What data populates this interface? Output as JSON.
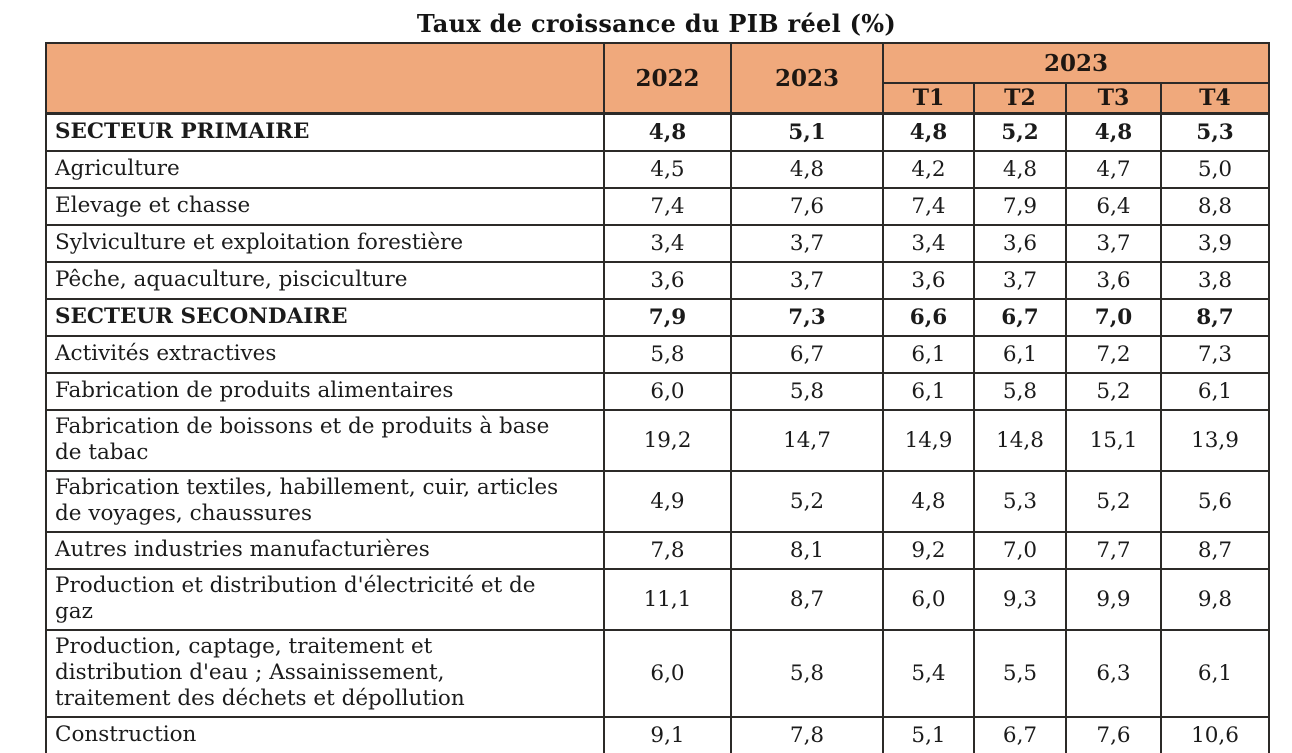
{
  "title": "Taux de croissance du PIB réel (%)",
  "colors": {
    "header_bg": "#F0A97C",
    "border": "#2C2A28",
    "text": "#1B1B1B"
  },
  "table": {
    "header": {
      "col_2022": "2022",
      "col_2023": "2023",
      "group_2023": "2023",
      "quarters": [
        "T1",
        "T2",
        "T3",
        "T4"
      ]
    },
    "columns": [
      "",
      "2022",
      "2023",
      "T1 2023",
      "T2 2023",
      "T3 2023",
      "T4 2023"
    ],
    "rows": [
      {
        "label": "SECTEUR PRIMAIRE",
        "bold": true,
        "values": [
          "4,8",
          "5,1",
          "4,8",
          "5,2",
          "4,8",
          "5,3"
        ]
      },
      {
        "label": "Agriculture",
        "bold": false,
        "values": [
          "4,5",
          "4,8",
          "4,2",
          "4,8",
          "4,7",
          "5,0"
        ]
      },
      {
        "label": "Elevage et chasse",
        "bold": false,
        "values": [
          "7,4",
          "7,6",
          "7,4",
          "7,9",
          "6,4",
          "8,8"
        ]
      },
      {
        "label": "Sylviculture et exploitation forestière",
        "bold": false,
        "values": [
          "3,4",
          "3,7",
          "3,4",
          "3,6",
          "3,7",
          "3,9"
        ]
      },
      {
        "label": "Pêche, aquaculture, pisciculture",
        "bold": false,
        "values": [
          "3,6",
          "3,7",
          "3,6",
          "3,7",
          "3,6",
          "3,8"
        ]
      },
      {
        "label": "SECTEUR SECONDAIRE",
        "bold": true,
        "values": [
          "7,9",
          "7,3",
          "6,6",
          "6,7",
          "7,0",
          "8,7"
        ]
      },
      {
        "label": "Activités extractives",
        "bold": false,
        "values": [
          "5,8",
          "6,7",
          "6,1",
          "6,1",
          "7,2",
          "7,3"
        ]
      },
      {
        "label": "Fabrication de produits alimentaires",
        "bold": false,
        "values": [
          "6,0",
          "5,8",
          "6,1",
          "5,8",
          "5,2",
          "6,1"
        ]
      },
      {
        "label": "Fabrication de boissons et de produits à base de tabac",
        "bold": false,
        "values": [
          "19,2",
          "14,7",
          "14,9",
          "14,8",
          "15,1",
          "13,9"
        ]
      },
      {
        "label": "Fabrication textiles, habillement, cuir, articles de voyages, chaussures",
        "bold": false,
        "values": [
          "4,9",
          "5,2",
          "4,8",
          "5,3",
          "5,2",
          "5,6"
        ]
      },
      {
        "label": "Autres industries manufacturières",
        "bold": false,
        "values": [
          "7,8",
          "8,1",
          "9,2",
          "7,0",
          "7,7",
          "8,7"
        ]
      },
      {
        "label": "Production et distribution d'électricité et de gaz",
        "bold": false,
        "values": [
          "11,1",
          "8,7",
          "6,0",
          "9,3",
          "9,9",
          "9,8"
        ]
      },
      {
        "label": "Production, captage, traitement et distribution d'eau ; Assainissement, traitement des déchets et dépollution",
        "bold": false,
        "values": [
          "6,0",
          "5,8",
          "5,4",
          "5,5",
          "6,3",
          "6,1"
        ]
      },
      {
        "label": "Construction",
        "bold": false,
        "values": [
          "9,1",
          "7,8",
          "5,1",
          "6,7",
          "7,6",
          "10,6"
        ]
      }
    ]
  },
  "chart_data": {
    "type": "table",
    "title": "Taux de croissance du PIB réel (%)",
    "categories": [
      "2022",
      "2023",
      "T1 2023",
      "T2 2023",
      "T3 2023",
      "T4 2023"
    ],
    "series": [
      {
        "name": "SECTEUR PRIMAIRE",
        "values": [
          4.8,
          5.1,
          4.8,
          5.2,
          4.8,
          5.3
        ]
      },
      {
        "name": "Agriculture",
        "values": [
          4.5,
          4.8,
          4.2,
          4.8,
          4.7,
          5.0
        ]
      },
      {
        "name": "Elevage et chasse",
        "values": [
          7.4,
          7.6,
          7.4,
          7.9,
          6.4,
          8.8
        ]
      },
      {
        "name": "Sylviculture et exploitation forestière",
        "values": [
          3.4,
          3.7,
          3.4,
          3.6,
          3.7,
          3.9
        ]
      },
      {
        "name": "Pêche, aquaculture, pisciculture",
        "values": [
          3.6,
          3.7,
          3.6,
          3.7,
          3.6,
          3.8
        ]
      },
      {
        "name": "SECTEUR SECONDAIRE",
        "values": [
          7.9,
          7.3,
          6.6,
          6.7,
          7.0,
          8.7
        ]
      },
      {
        "name": "Activités extractives",
        "values": [
          5.8,
          6.7,
          6.1,
          6.1,
          7.2,
          7.3
        ]
      },
      {
        "name": "Fabrication de produits alimentaires",
        "values": [
          6.0,
          5.8,
          6.1,
          5.8,
          5.2,
          6.1
        ]
      },
      {
        "name": "Fabrication de boissons et de produits à base de tabac",
        "values": [
          19.2,
          14.7,
          14.9,
          14.8,
          15.1,
          13.9
        ]
      },
      {
        "name": "Fabrication textiles, habillement, cuir, articles de voyages, chaussures",
        "values": [
          4.9,
          5.2,
          4.8,
          5.3,
          5.2,
          5.6
        ]
      },
      {
        "name": "Autres industries manufacturières",
        "values": [
          7.8,
          8.1,
          9.2,
          7.0,
          7.7,
          8.7
        ]
      },
      {
        "name": "Production et distribution d'électricité et de gaz",
        "values": [
          11.1,
          8.7,
          6.0,
          9.3,
          9.9,
          9.8
        ]
      },
      {
        "name": "Production, captage, traitement et distribution d'eau ; Assainissement, traitement des déchets et dépollution",
        "values": [
          6.0,
          5.8,
          5.4,
          5.5,
          6.3,
          6.1
        ]
      },
      {
        "name": "Construction",
        "values": [
          9.1,
          7.8,
          5.1,
          6.7,
          7.6,
          10.6
        ]
      }
    ]
  }
}
